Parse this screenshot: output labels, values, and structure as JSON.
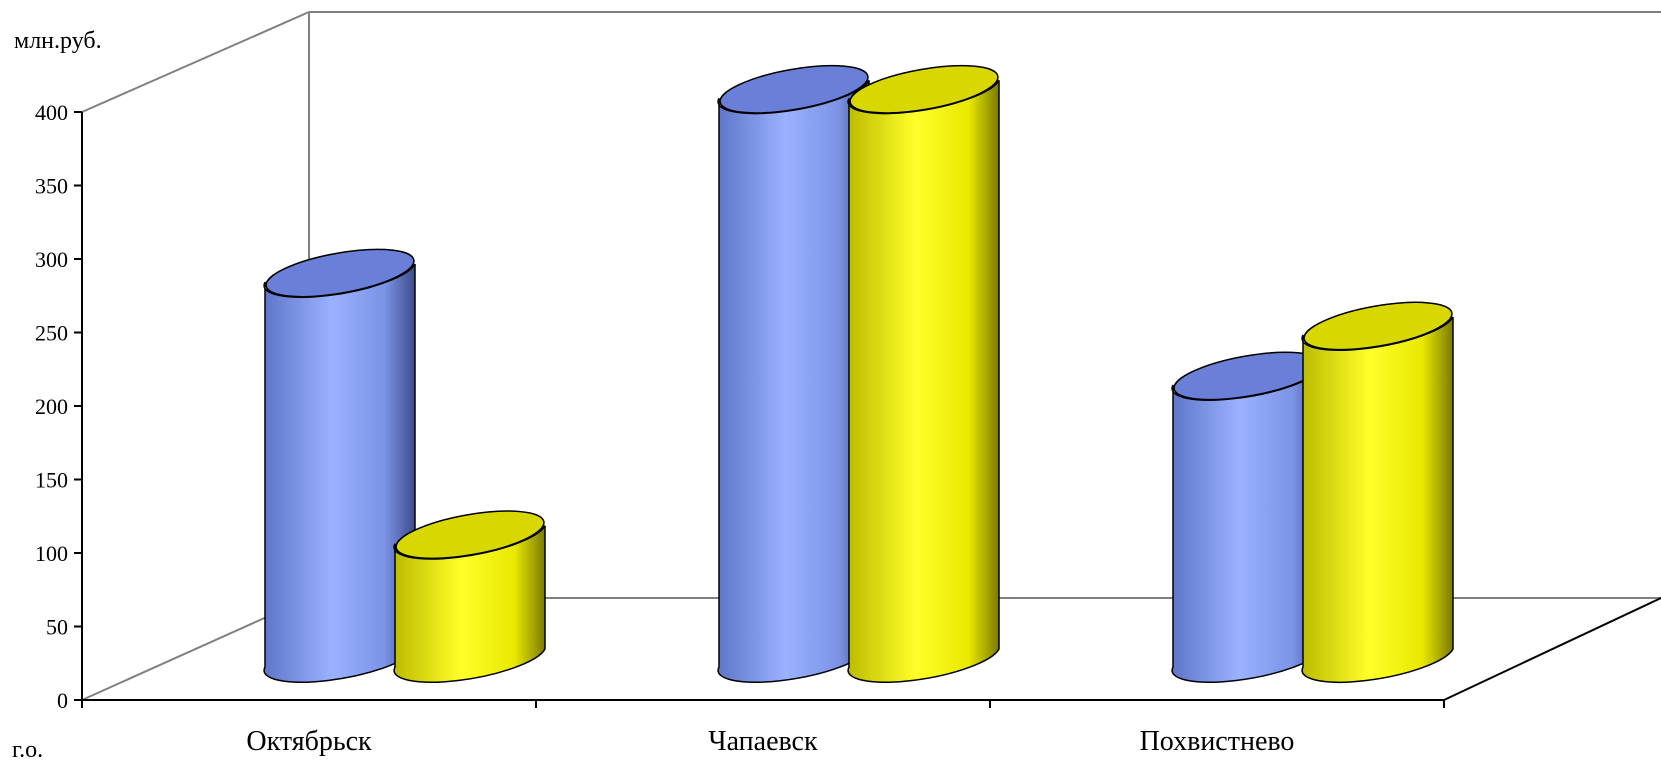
{
  "chart_data": {
    "type": "bar",
    "style": "3d-cylinder",
    "ylabel": "млн.руб.",
    "xlabel": "г.о.",
    "ylim": [
      0,
      400
    ],
    "yticks": [
      0,
      50,
      100,
      150,
      200,
      250,
      300,
      350,
      400
    ],
    "categories": [
      "Октябрьск",
      "Чапаевск",
      "Похвистнево"
    ],
    "series": [
      {
        "color": "#8aa4ff",
        "values": [
          268,
          393,
          198
        ]
      },
      {
        "color": "#ffff00",
        "values": [
          90,
          393,
          232
        ]
      }
    ],
    "grid": false,
    "legend": "none"
  }
}
